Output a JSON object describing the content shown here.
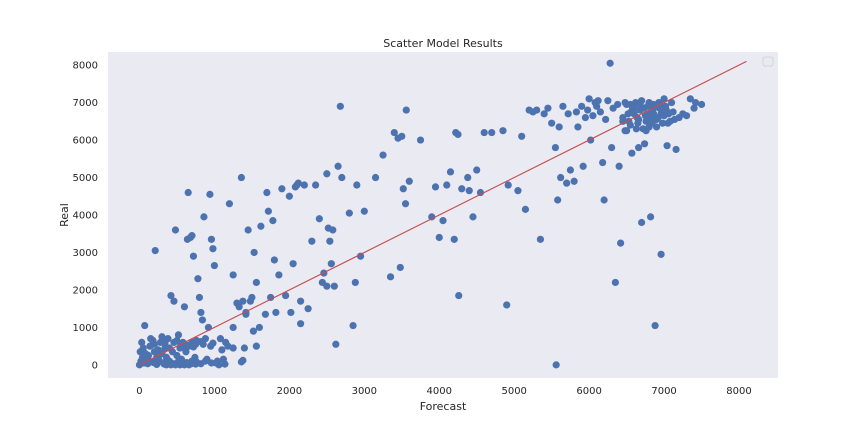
{
  "chart_data": {
    "type": "scatter",
    "title": "Scatter Model Results",
    "xlabel": "Forecast",
    "ylabel": "Real",
    "xlim": [
      -420,
      8520
    ],
    "ylim": [
      -350,
      8350
    ],
    "xticks": [
      0,
      1000,
      2000,
      3000,
      4000,
      5000,
      6000,
      7000,
      8000
    ],
    "yticks": [
      0,
      1000,
      2000,
      3000,
      4000,
      5000,
      6000,
      7000,
      8000
    ],
    "grid": false,
    "legend": "top-right (empty)",
    "colors": {
      "background": "#eaeaf2",
      "points": "#4c72b0",
      "fit_line": "#c44e52"
    },
    "fit_line": {
      "x": [
        0,
        8100
      ],
      "y": [
        0,
        8100
      ]
    },
    "points": [
      [
        0,
        0
      ],
      [
        20,
        100
      ],
      [
        40,
        200
      ],
      [
        10,
        350
      ],
      [
        60,
        50
      ],
      [
        80,
        300
      ],
      [
        100,
        150
      ],
      [
        30,
        600
      ],
      [
        50,
        450
      ],
      [
        70,
        1050
      ],
      [
        120,
        250
      ],
      [
        140,
        500
      ],
      [
        160,
        80
      ],
      [
        180,
        650
      ],
      [
        200,
        350
      ],
      [
        210,
        3050
      ],
      [
        230,
        200
      ],
      [
        250,
        400
      ],
      [
        260,
        120
      ],
      [
        280,
        600
      ],
      [
        300,
        300
      ],
      [
        320,
        50
      ],
      [
        340,
        450
      ],
      [
        360,
        200
      ],
      [
        380,
        700
      ],
      [
        400,
        100
      ],
      [
        420,
        1850
      ],
      [
        440,
        350
      ],
      [
        460,
        1700
      ],
      [
        480,
        3600
      ],
      [
        500,
        250
      ],
      [
        520,
        800
      ],
      [
        540,
        450
      ],
      [
        560,
        150
      ],
      [
        580,
        600
      ],
      [
        600,
        1550
      ],
      [
        620,
        350
      ],
      [
        640,
        3350
      ],
      [
        650,
        4600
      ],
      [
        660,
        500
      ],
      [
        680,
        3400
      ],
      [
        700,
        3450
      ],
      [
        720,
        2900
      ],
      [
        740,
        200
      ],
      [
        760,
        650
      ],
      [
        780,
        2300
      ],
      [
        800,
        1800
      ],
      [
        820,
        1400
      ],
      [
        840,
        1200
      ],
      [
        860,
        3950
      ],
      [
        880,
        700
      ],
      [
        900,
        150
      ],
      [
        920,
        1000
      ],
      [
        940,
        4550
      ],
      [
        960,
        3350
      ],
      [
        980,
        3100
      ],
      [
        1000,
        2650
      ],
      [
        1020,
        50
      ],
      [
        1040,
        100
      ],
      [
        1080,
        700
      ],
      [
        1100,
        400
      ],
      [
        1120,
        150
      ],
      [
        1150,
        600
      ],
      [
        1200,
        4300
      ],
      [
        1250,
        2400
      ],
      [
        1300,
        1650
      ],
      [
        1330,
        1550
      ],
      [
        1360,
        5000
      ],
      [
        1380,
        1700
      ],
      [
        1400,
        450
      ],
      [
        1420,
        1350
      ],
      [
        1450,
        3600
      ],
      [
        1480,
        1700
      ],
      [
        1500,
        1800
      ],
      [
        1530,
        3000
      ],
      [
        1560,
        2200
      ],
      [
        1600,
        1000
      ],
      [
        1680,
        1350
      ],
      [
        1700,
        4600
      ],
      [
        1720,
        4100
      ],
      [
        1780,
        3850
      ],
      [
        1800,
        2800
      ],
      [
        1820,
        1400
      ],
      [
        1860,
        2400
      ],
      [
        1900,
        4700
      ],
      [
        1950,
        1850
      ],
      [
        2000,
        4500
      ],
      [
        2020,
        1400
      ],
      [
        2050,
        2700
      ],
      [
        2080,
        4750
      ],
      [
        2100,
        4800
      ],
      [
        2120,
        4850
      ],
      [
        2150,
        1100
      ],
      [
        2200,
        4800
      ],
      [
        2250,
        1500
      ],
      [
        2300,
        3300
      ],
      [
        2350,
        4800
      ],
      [
        2400,
        3900
      ],
      [
        2440,
        2200
      ],
      [
        2460,
        2450
      ],
      [
        2500,
        5100
      ],
      [
        2520,
        3650
      ],
      [
        2540,
        3300
      ],
      [
        2560,
        2700
      ],
      [
        2580,
        3600
      ],
      [
        2600,
        2100
      ],
      [
        2620,
        550
      ],
      [
        2650,
        5300
      ],
      [
        2680,
        6900
      ],
      [
        2700,
        5000
      ],
      [
        2800,
        4050
      ],
      [
        2850,
        1050
      ],
      [
        2880,
        2200
      ],
      [
        2900,
        4800
      ],
      [
        2950,
        2900
      ],
      [
        3000,
        4100
      ],
      [
        3150,
        5000
      ],
      [
        3250,
        5600
      ],
      [
        3350,
        2350
      ],
      [
        3400,
        6200
      ],
      [
        3450,
        6050
      ],
      [
        3480,
        2600
      ],
      [
        3500,
        6100
      ],
      [
        3520,
        4700
      ],
      [
        3550,
        4300
      ],
      [
        3560,
        6800
      ],
      [
        3600,
        4900
      ],
      [
        3750,
        6000
      ],
      [
        3900,
        3950
      ],
      [
        3950,
        4750
      ],
      [
        4000,
        3400
      ],
      [
        4050,
        3850
      ],
      [
        4100,
        4800
      ],
      [
        4150,
        5150
      ],
      [
        4200,
        3350
      ],
      [
        4220,
        6200
      ],
      [
        4250,
        6150
      ],
      [
        4260,
        1850
      ],
      [
        4300,
        4700
      ],
      [
        4380,
        5000
      ],
      [
        4400,
        4650
      ],
      [
        4450,
        3950
      ],
      [
        4500,
        5200
      ],
      [
        4550,
        4600
      ],
      [
        4600,
        6200
      ],
      [
        4700,
        6200
      ],
      [
        4850,
        6250
      ],
      [
        4900,
        1600
      ],
      [
        4920,
        4800
      ],
      [
        5050,
        4650
      ],
      [
        5100,
        6100
      ],
      [
        5150,
        4150
      ],
      [
        5200,
        6800
      ],
      [
        5250,
        6750
      ],
      [
        5300,
        6800
      ],
      [
        5350,
        3350
      ],
      [
        5400,
        6700
      ],
      [
        5450,
        6850
      ],
      [
        5500,
        6450
      ],
      [
        5550,
        5800
      ],
      [
        5560,
        0
      ],
      [
        5580,
        4400
      ],
      [
        5600,
        6350
      ],
      [
        5620,
        5000
      ],
      [
        5650,
        6900
      ],
      [
        5700,
        4850
      ],
      [
        5720,
        6700
      ],
      [
        5750,
        5200
      ],
      [
        5800,
        4900
      ],
      [
        5830,
        6750
      ],
      [
        5850,
        6350
      ],
      [
        5900,
        6900
      ],
      [
        5920,
        5300
      ],
      [
        5950,
        6600
      ],
      [
        5980,
        6800
      ],
      [
        6000,
        7100
      ],
      [
        6020,
        6000
      ],
      [
        6050,
        6650
      ],
      [
        6080,
        7000
      ],
      [
        6100,
        6900
      ],
      [
        6120,
        7050
      ],
      [
        6150,
        6750
      ],
      [
        6180,
        5400
      ],
      [
        6200,
        4400
      ],
      [
        6220,
        6550
      ],
      [
        6250,
        7050
      ],
      [
        6280,
        8050
      ],
      [
        6300,
        5800
      ],
      [
        6320,
        6850
      ],
      [
        6350,
        2200
      ],
      [
        6380,
        6950
      ],
      [
        6400,
        5300
      ],
      [
        6420,
        3250
      ],
      [
        6450,
        6500
      ],
      [
        6480,
        7000
      ],
      [
        6500,
        6950
      ],
      [
        6520,
        6700
      ],
      [
        6550,
        6400
      ],
      [
        6570,
        5650
      ],
      [
        6600,
        6850
      ],
      [
        6620,
        7000
      ],
      [
        6640,
        6600
      ],
      [
        6660,
        5800
      ],
      [
        6680,
        6800
      ],
      [
        6700,
        3800
      ],
      [
        6720,
        6300
      ],
      [
        6740,
        5900
      ],
      [
        6760,
        6500
      ],
      [
        6780,
        6900
      ],
      [
        6800,
        7000
      ],
      [
        6820,
        3950
      ],
      [
        6840,
        6450
      ],
      [
        6860,
        6700
      ],
      [
        6880,
        1050
      ],
      [
        6900,
        6350
      ],
      [
        6920,
        6600
      ],
      [
        6940,
        6850
      ],
      [
        6960,
        2950
      ],
      [
        6980,
        6450
      ],
      [
        7000,
        7100
      ],
      [
        7020,
        6900
      ],
      [
        7040,
        5850
      ],
      [
        7060,
        6700
      ],
      [
        7080,
        6500
      ],
      [
        7100,
        7000
      ],
      [
        7120,
        6750
      ],
      [
        7140,
        6550
      ],
      [
        7160,
        5750
      ],
      [
        7200,
        6600
      ],
      [
        7250,
        6700
      ],
      [
        7300,
        6650
      ],
      [
        7350,
        7100
      ],
      [
        7400,
        6850
      ],
      [
        7420,
        7000
      ],
      [
        7500,
        6950
      ],
      [
        6450,
        6600
      ],
      [
        6500,
        6250
      ],
      [
        6550,
        6950
      ],
      [
        6600,
        6700
      ],
      [
        6650,
        6450
      ],
      [
        6700,
        7050
      ],
      [
        6750,
        6650
      ],
      [
        6800,
        6350
      ],
      [
        6850,
        6800
      ],
      [
        6900,
        6550
      ],
      [
        6950,
        6950
      ],
      [
        7000,
        6650
      ],
      [
        7050,
        6450
      ],
      [
        6480,
        6250
      ],
      [
        6580,
        6850
      ],
      [
        6680,
        6950
      ],
      [
        6780,
        6700
      ],
      [
        6880,
        6900
      ],
      [
        6980,
        6750
      ],
      [
        6530,
        6500
      ],
      [
        6630,
        6300
      ],
      [
        6730,
        6850
      ],
      [
        6830,
        6600
      ],
      [
        6930,
        7000
      ],
      [
        7030,
        6800
      ],
      [
        6560,
        6750
      ],
      [
        6660,
        6550
      ],
      [
        6760,
        6250
      ],
      [
        6860,
        6950
      ],
      [
        6960,
        6700
      ],
      [
        360,
        0
      ],
      [
        420,
        0
      ],
      [
        480,
        0
      ],
      [
        540,
        0
      ],
      [
        600,
        0
      ],
      [
        660,
        0
      ],
      [
        700,
        100
      ],
      [
        760,
        80
      ],
      [
        820,
        30
      ],
      [
        880,
        100
      ],
      [
        960,
        50
      ],
      [
        1060,
        0
      ],
      [
        1140,
        20
      ],
      [
        1360,
        80
      ],
      [
        110,
        30
      ],
      [
        190,
        60
      ],
      [
        230,
        10
      ],
      [
        270,
        90
      ],
      [
        330,
        20
      ],
      [
        390,
        60
      ],
      [
        450,
        30
      ],
      [
        510,
        70
      ],
      [
        570,
        20
      ],
      [
        630,
        60
      ],
      [
        690,
        30
      ],
      [
        750,
        20
      ],
      [
        150,
        700
      ],
      [
        300,
        750
      ],
      [
        500,
        650
      ],
      [
        700,
        600
      ],
      [
        850,
        550
      ],
      [
        950,
        500
      ],
      [
        600,
        500
      ],
      [
        750,
        550
      ],
      [
        400,
        450
      ],
      [
        550,
        520
      ],
      [
        200,
        550
      ],
      [
        260,
        250
      ],
      [
        340,
        580
      ],
      [
        460,
        600
      ],
      [
        580,
        480
      ],
      [
        640,
        520
      ],
      [
        720,
        480
      ],
      [
        820,
        620
      ],
      [
        980,
        580
      ],
      [
        1180,
        500
      ],
      [
        1250,
        450
      ],
      [
        1380,
        120
      ],
      [
        1560,
        500
      ],
      [
        1250,
        1000
      ],
      [
        1420,
        1400
      ],
      [
        1520,
        900
      ],
      [
        1620,
        3700
      ],
      [
        1750,
        1800
      ],
      [
        2150,
        1700
      ],
      [
        2500,
        2100
      ]
    ]
  }
}
